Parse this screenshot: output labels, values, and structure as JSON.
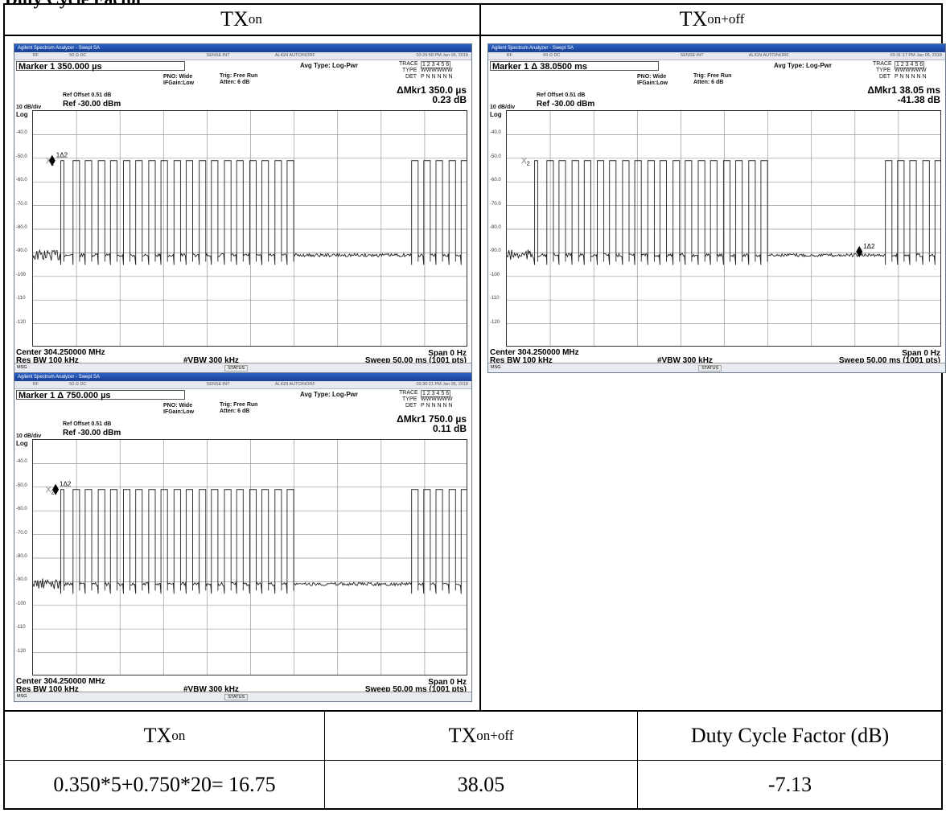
{
  "page_title": "Duty Cycle Factor",
  "column_headers": [
    {
      "base": "TX",
      "sub": "on"
    },
    {
      "base": "TX",
      "sub": "on+off"
    }
  ],
  "analyzer": {
    "app_title": "Agilent Spectrum Analyzer - Swept SA",
    "rf": "RF",
    "imp": "50 Ω  DC",
    "sense": "SENSE:INT",
    "align": "ALIGN AUTO/NORF",
    "avg_type": "Avg Type: Log-Pwr",
    "pno": "PNO: Wide",
    "ifgain": "IFGain:Low",
    "trig": "Trig: Free Run",
    "atten": "Atten: 6 dB",
    "trace_label": "TRACE",
    "trace_vals": "1 2 3 4 5 6",
    "type_label": "TYPE",
    "type_vals": "WWWWWW",
    "det_label": "DET",
    "det_vals": "P N N N N N",
    "ref_offset": "Ref Offset 0.51 dB",
    "scale": "10 dB/div",
    "ref": "Ref -30.00 dBm",
    "log": "Log",
    "center": "Center 304.250000 MHz",
    "rbw": "Res BW 100 kHz",
    "vbw": "#VBW 300 kHz",
    "span": "Span 0 Hz",
    "sweep": "Sweep  50.00 ms (1001 pts)",
    "msg": "MSG",
    "status": "STATUS",
    "y_ticks": [
      "-40.0",
      "-50.0",
      "-60.0",
      "-70.0",
      "-80.0",
      "-90.0",
      "-100",
      "-110",
      "-120"
    ],
    "marker_label": "1Δ2",
    "marker_sub": "2",
    "marker_x": "X"
  },
  "screens": [
    {
      "time": "03:29:58 PM Jan 05, 2018",
      "marker": "Marker 1 350.000 µs",
      "delta_label": "ΔMkr1 350.0 µs",
      "delta_value": "0.23 dB",
      "mk_ms": 2.2,
      "mk_level": -51
    },
    {
      "time": "03:31:17 PM Jan 05, 2018",
      "marker": "Marker 1 Δ 38.0500 ms",
      "delta_label": "ΔMkr1 38.05 ms",
      "delta_value": "-41.38 dB",
      "mk_ms": 40.5,
      "mk_level": -89.5
    },
    {
      "time": "03:30:21 PM Jan 05, 2018",
      "marker": "Marker 1 Δ 750.000 µs",
      "delta_label": "ΔMkr1 750.0 µs",
      "delta_value": "0.11 dB",
      "mk_ms": 2.6,
      "mk_level": -51
    }
  ],
  "pulses_ms": [
    [
      3.2,
      3.55
    ],
    [
      4.6,
      5.35
    ],
    [
      6.0,
      6.75
    ],
    [
      7.5,
      8.25
    ],
    [
      8.9,
      9.65
    ],
    [
      10.4,
      11.15
    ],
    [
      11.8,
      12.55
    ],
    [
      13.3,
      14.05
    ],
    [
      14.7,
      15.45
    ],
    [
      16.2,
      16.95
    ],
    [
      17.6,
      18.35
    ],
    [
      19.1,
      19.85
    ],
    [
      20.5,
      21.25
    ],
    [
      22.0,
      22.75
    ],
    [
      23.4,
      24.15
    ],
    [
      24.9,
      25.65
    ],
    [
      26.3,
      27.05
    ],
    [
      27.8,
      28.55
    ],
    [
      29.2,
      29.95
    ],
    [
      30.6,
      31.35
    ],
    [
      32.1,
      32.85
    ],
    [
      33.5,
      34.25
    ],
    [
      34.9,
      35.65
    ],
    [
      36.3,
      37.05
    ],
    [
      37.8,
      38.55
    ],
    [
      39.2,
      39.95
    ],
    [
      40.6,
      41.35
    ],
    [
      42.1,
      42.85
    ],
    [
      43.5,
      44.25
    ],
    [
      44.9,
      45.65
    ],
    [
      46.3,
      47.05
    ],
    [
      47.8,
      48.55
    ],
    [
      49.2,
      49.95
    ]
  ],
  "summary": {
    "headers": [
      {
        "base": "TX",
        "sub": "on"
      },
      {
        "base": "TX",
        "sub": "on+off"
      },
      {
        "text": "Duty Cycle Factor (dB)"
      }
    ],
    "values": [
      "0.350*5+0.750*20= 16.75",
      "38.05",
      "-7.13"
    ]
  }
}
